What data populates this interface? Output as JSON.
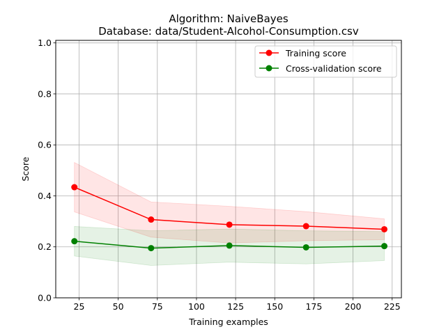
{
  "chart_data": {
    "type": "line",
    "title_lines": [
      "Algorithm: NaiveBayes",
      "Database: data/Student-Alcohol-Consumption.csv"
    ],
    "xlabel": "Training examples",
    "ylabel": "Score",
    "xlim": [
      10.1,
      230.9
    ],
    "ylim": [
      0.0,
      1.01
    ],
    "xticks": [
      25,
      50,
      75,
      100,
      125,
      150,
      175,
      200,
      225
    ],
    "yticks": [
      0.0,
      0.2,
      0.4,
      0.6,
      0.8,
      1.0
    ],
    "ytick_labels": [
      "0.0",
      "0.2",
      "0.4",
      "0.6",
      "0.8",
      "1.0"
    ],
    "grid": true,
    "legend_position": "top-right",
    "x": [
      22,
      71,
      121,
      170,
      220
    ],
    "series": [
      {
        "name": "Training score",
        "color": "#ff0000",
        "fill_color": "#ff0000",
        "values": [
          0.434,
          0.307,
          0.287,
          0.281,
          0.269
        ],
        "band_upper": [
          0.531,
          0.376,
          0.359,
          0.338,
          0.31
        ],
        "band_lower": [
          0.337,
          0.238,
          0.215,
          0.224,
          0.228
        ]
      },
      {
        "name": "Cross-validation score",
        "color": "#008000",
        "fill_color": "#008000",
        "values": [
          0.222,
          0.195,
          0.205,
          0.198,
          0.203
        ],
        "band_upper": [
          0.28,
          0.263,
          0.27,
          0.263,
          0.26
        ],
        "band_lower": [
          0.164,
          0.127,
          0.14,
          0.133,
          0.146
        ]
      }
    ]
  }
}
